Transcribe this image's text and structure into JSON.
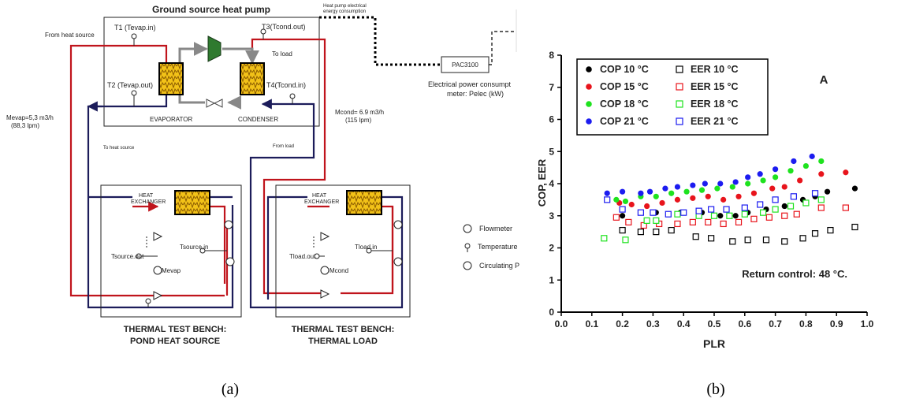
{
  "diagram": {
    "title": "Ground source heat pump",
    "caption": "(a)",
    "labels": {
      "from_heat_source": "From heat source",
      "t1": "T1 (Tevap.in)",
      "t2": "T2 (Tevap.out)",
      "t3": "T3(Tcond.out)",
      "t4": "T4(Tcond.in)",
      "to_load": "To load",
      "evaporator": "EVAPORATOR",
      "condenser": "CONDENSER",
      "mevap_flow": "Mevap=5,3 m3/h",
      "mevap_lpm": "(88,3 lpm)",
      "mcond_flow": "Mcond= 6.9 m3/h",
      "mcond_lpm": "(115 lpm)",
      "to_heat_source": "To heat source",
      "from_load": "From load",
      "hp_elec": "Heat pump electrical",
      "hp_energy": "energy consumption",
      "pac": "PAC3100",
      "elec_meter_1": "Electrical power consumpt",
      "elec_meter_2": "meter: Pelec (kW)",
      "hx": "HEAT",
      "hx2": "EXCHANGER",
      "tsource_out": "Tsource.out",
      "tsource_in": "Tsource,in",
      "mevap": "Mevap",
      "tload_out": "Tload.out",
      "tload_in": "Tload.in",
      "mcond": "Mcond",
      "bench1_line1": "THERMAL TEST BENCH:",
      "bench1_line2": "POND HEAT SOURCE",
      "bench2_line1": "THERMAL TEST BENCH:",
      "bench2_line2": "THERMAL LOAD",
      "legend_flowmeter": "Flowmeter",
      "legend_temperature": "Temperature",
      "legend_circulating": "Circulating P"
    }
  },
  "chart_data": {
    "type": "scatter",
    "caption": "(b)",
    "panel_label": "A",
    "annotation": "Return control: 48   °C.",
    "xlabel": "PLR",
    "ylabel": "COP, EER",
    "xlim": [
      0,
      1.0
    ],
    "ylim": [
      0,
      8
    ],
    "xticks": [
      "0.0",
      "0.1",
      "0.2",
      "0.3",
      "0.4",
      "0.5",
      "0.6",
      "0.7",
      "0.8",
      "0.9",
      "1.0"
    ],
    "yticks": [
      "0",
      "1",
      "2",
      "3",
      "4",
      "5",
      "6",
      "7",
      "8"
    ],
    "legend_position": "top-left",
    "colors": {
      "c10": "#000000",
      "c15": "#e8141c",
      "c18": "#1ee21e",
      "c21": "#1c1cf0"
    },
    "series": [
      {
        "name": "COP 10  °C",
        "marker": "filled",
        "color": "#000000",
        "x": [
          0.2,
          0.31,
          0.39,
          0.46,
          0.52,
          0.57,
          0.61,
          0.67,
          0.73,
          0.79,
          0.83,
          0.87,
          0.96
        ],
        "y": [
          3.0,
          3.1,
          3.1,
          3.1,
          3.0,
          3.0,
          3.1,
          3.2,
          3.3,
          3.5,
          3.6,
          3.75,
          3.85
        ]
      },
      {
        "name": "COP 15  °C",
        "marker": "filled",
        "color": "#e8141c",
        "x": [
          0.19,
          0.23,
          0.28,
          0.33,
          0.38,
          0.43,
          0.48,
          0.53,
          0.58,
          0.63,
          0.69,
          0.73,
          0.78,
          0.85,
          0.93
        ],
        "y": [
          3.4,
          3.35,
          3.3,
          3.4,
          3.5,
          3.55,
          3.6,
          3.5,
          3.6,
          3.7,
          3.85,
          3.9,
          4.1,
          4.3,
          4.35
        ]
      },
      {
        "name": "COP 18  °C",
        "marker": "filled",
        "color": "#1ee21e",
        "x": [
          0.18,
          0.21,
          0.26,
          0.31,
          0.36,
          0.41,
          0.46,
          0.51,
          0.56,
          0.61,
          0.66,
          0.7,
          0.75,
          0.8,
          0.85
        ],
        "y": [
          3.5,
          3.45,
          3.6,
          3.6,
          3.7,
          3.75,
          3.8,
          3.85,
          3.9,
          4.0,
          4.1,
          4.2,
          4.4,
          4.55,
          4.7
        ]
      },
      {
        "name": "COP 21  °C",
        "marker": "filled",
        "color": "#1c1cf0",
        "x": [
          0.15,
          0.2,
          0.26,
          0.29,
          0.34,
          0.38,
          0.43,
          0.47,
          0.52,
          0.57,
          0.61,
          0.65,
          0.7,
          0.76,
          0.82
        ],
        "y": [
          3.7,
          3.75,
          3.7,
          3.75,
          3.85,
          3.9,
          3.95,
          4.0,
          4.0,
          4.05,
          4.2,
          4.3,
          4.45,
          4.7,
          4.85
        ]
      },
      {
        "name": "EER 10  °C",
        "marker": "open",
        "color": "#000000",
        "x": [
          0.2,
          0.26,
          0.31,
          0.36,
          0.44,
          0.49,
          0.56,
          0.61,
          0.67,
          0.73,
          0.79,
          0.83,
          0.88,
          0.96
        ],
        "y": [
          2.55,
          2.5,
          2.5,
          2.55,
          2.35,
          2.3,
          2.2,
          2.25,
          2.25,
          2.2,
          2.3,
          2.45,
          2.55,
          2.65
        ]
      },
      {
        "name": "EER 15  °C",
        "marker": "open",
        "color": "#e8141c",
        "x": [
          0.18,
          0.22,
          0.27,
          0.32,
          0.38,
          0.43,
          0.48,
          0.53,
          0.58,
          0.63,
          0.68,
          0.73,
          0.77,
          0.85,
          0.93
        ],
        "y": [
          2.95,
          2.8,
          2.7,
          2.75,
          2.75,
          2.8,
          2.8,
          2.75,
          2.8,
          2.9,
          2.95,
          3.0,
          3.05,
          3.25,
          3.25
        ]
      },
      {
        "name": "EER 18  °C",
        "marker": "open",
        "color": "#1ee21e",
        "x": [
          0.14,
          0.21,
          0.28,
          0.31,
          0.38,
          0.45,
          0.5,
          0.55,
          0.6,
          0.66,
          0.7,
          0.75,
          0.8,
          0.85
        ],
        "y": [
          2.3,
          2.25,
          2.85,
          2.85,
          3.05,
          3.0,
          3.0,
          3.0,
          3.05,
          3.1,
          3.2,
          3.3,
          3.4,
          3.5
        ]
      },
      {
        "name": "EER 21  °C",
        "marker": "open",
        "color": "#1c1cf0",
        "x": [
          0.15,
          0.2,
          0.26,
          0.3,
          0.35,
          0.4,
          0.45,
          0.49,
          0.54,
          0.6,
          0.65,
          0.7,
          0.76,
          0.83
        ],
        "y": [
          3.5,
          3.2,
          3.1,
          3.1,
          3.05,
          3.1,
          3.15,
          3.2,
          3.2,
          3.25,
          3.35,
          3.5,
          3.6,
          3.7
        ]
      }
    ]
  }
}
